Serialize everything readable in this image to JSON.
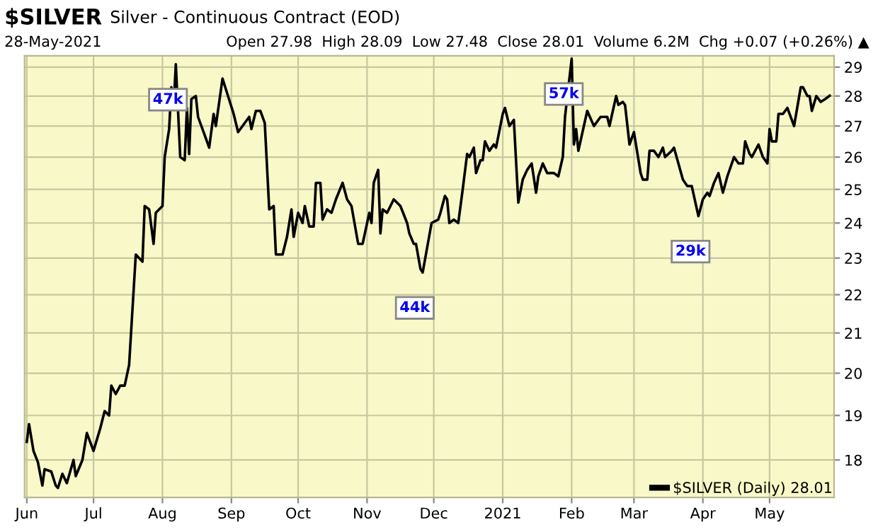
{
  "chart_data": {
    "type": "line",
    "title": "$SILVER",
    "subtitle": "Silver - Continuous Contract (EOD)",
    "annotations": [
      "28-May-2021",
      "Open 27.98  High 28.09  Low 27.48  Close 28.01  Volume 6.2M  Chg +0.07 (+0.26%) ▲",
      {
        "text": "47k",
        "x": "2020-08-07",
        "y": 29.1
      },
      {
        "text": "44k",
        "x": "2020-11-26",
        "y": 22.6
      },
      {
        "text": "57k",
        "x": "2021-02-01",
        "y": 29.3
      },
      {
        "text": "29k",
        "x": "2021-03-30",
        "y": 24.2
      }
    ],
    "x": [
      "2020-06-01",
      "2020-06-02",
      "2020-06-04",
      "2020-06-06",
      "2020-06-08",
      "2020-06-09",
      "2020-06-12",
      "2020-06-14",
      "2020-06-15",
      "2020-06-17",
      "2020-06-19",
      "2020-06-22",
      "2020-06-23",
      "2020-06-26",
      "2020-06-28",
      "2020-07-01",
      "2020-07-04",
      "2020-07-06",
      "2020-07-08",
      "2020-07-09",
      "2020-07-11",
      "2020-07-13",
      "2020-07-15",
      "2020-07-17",
      "2020-07-20",
      "2020-07-23",
      "2020-07-24",
      "2020-07-26",
      "2020-07-28",
      "2020-07-29",
      "2020-08-01",
      "2020-08-02",
      "2020-08-04",
      "2020-08-05",
      "2020-08-06",
      "2020-08-07",
      "2020-08-09",
      "2020-08-11",
      "2020-08-12",
      "2020-08-13",
      "2020-08-14",
      "2020-08-16",
      "2020-08-17",
      "2020-08-20",
      "2020-08-22",
      "2020-08-24",
      "2020-08-25",
      "2020-08-28",
      "2020-09-02",
      "2020-09-04",
      "2020-09-09",
      "2020-09-10",
      "2020-09-12",
      "2020-09-14",
      "2020-09-16",
      "2020-09-18",
      "2020-09-20",
      "2020-09-21",
      "2020-09-24",
      "2020-09-26",
      "2020-09-28",
      "2020-09-29",
      "2020-10-01",
      "2020-10-03",
      "2020-10-04",
      "2020-10-06",
      "2020-10-08",
      "2020-10-09",
      "2020-10-11",
      "2020-10-12",
      "2020-10-14",
      "2020-10-16",
      "2020-10-18",
      "2020-10-21",
      "2020-10-23",
      "2020-10-25",
      "2020-10-28",
      "2020-10-30",
      "2020-11-02",
      "2020-11-03",
      "2020-11-04",
      "2020-11-06",
      "2020-11-07",
      "2020-11-08",
      "2020-11-10",
      "2020-11-13",
      "2020-11-16",
      "2020-11-19",
      "2020-11-20",
      "2020-11-22",
      "2020-11-23",
      "2020-11-25",
      "2020-11-26",
      "2020-11-30",
      "2020-12-03",
      "2020-12-04",
      "2020-12-06",
      "2020-12-07",
      "2020-12-08",
      "2020-12-10",
      "2020-12-12",
      "2020-12-14",
      "2020-12-16",
      "2020-12-17",
      "2020-12-19",
      "2020-12-20",
      "2020-12-22",
      "2020-12-23",
      "2020-12-24",
      "2020-12-26",
      "2020-12-28",
      "2020-12-29",
      "2021-01-01",
      "2021-01-02",
      "2021-01-04",
      "2021-01-06",
      "2021-01-08",
      "2021-01-10",
      "2021-01-12",
      "2021-01-14",
      "2021-01-16",
      "2021-01-17",
      "2021-01-19",
      "2021-01-21",
      "2021-01-24",
      "2021-01-26",
      "2021-01-28",
      "2021-01-29",
      "2021-02-01",
      "2021-02-02",
      "2021-02-03",
      "2021-02-04",
      "2021-02-08",
      "2021-02-11",
      "2021-02-14",
      "2021-02-17",
      "2021-02-18",
      "2021-02-21",
      "2021-02-22",
      "2021-02-24",
      "2021-02-25",
      "2021-02-27",
      "2021-03-01",
      "2021-03-04",
      "2021-03-05",
      "2021-03-07",
      "2021-03-08",
      "2021-03-10",
      "2021-03-12",
      "2021-03-14",
      "2021-03-15",
      "2021-03-18",
      "2021-03-19",
      "2021-03-23",
      "2021-03-25",
      "2021-03-27",
      "2021-03-30",
      "2021-04-01",
      "2021-04-03",
      "2021-04-04",
      "2021-04-06",
      "2021-04-08",
      "2021-04-10",
      "2021-04-12",
      "2021-04-15",
      "2021-04-17",
      "2021-04-19",
      "2021-04-20",
      "2021-04-22",
      "2021-04-23",
      "2021-04-26",
      "2021-04-28",
      "2021-04-30",
      "2021-05-01",
      "2021-05-02",
      "2021-05-04",
      "2021-05-05",
      "2021-05-07",
      "2021-05-09",
      "2021-05-12",
      "2021-05-15",
      "2021-05-16",
      "2021-05-18",
      "2021-05-19",
      "2021-05-20",
      "2021-05-22",
      "2021-05-24",
      "2021-05-26",
      "2021-05-28"
    ],
    "series": [
      {
        "name": "$SILVER (Daily) 28.01",
        "color": "#000000",
        "values": [
          18.4,
          18.8,
          18.2,
          17.95,
          17.45,
          17.8,
          17.75,
          17.45,
          17.4,
          17.7,
          17.5,
          18.0,
          17.65,
          18.0,
          18.6,
          18.2,
          18.7,
          19.1,
          19.0,
          19.7,
          19.5,
          19.7,
          19.7,
          20.2,
          23.1,
          22.9,
          24.5,
          24.4,
          23.4,
          24.3,
          24.5,
          26.0,
          26.9,
          28.3,
          27.6,
          29.1,
          26.0,
          25.9,
          27.6,
          26.1,
          27.9,
          28.0,
          27.3,
          26.7,
          26.3,
          27.4,
          27.0,
          28.6,
          27.4,
          26.8,
          27.3,
          26.9,
          27.5,
          27.5,
          27.1,
          24.4,
          24.5,
          23.1,
          23.1,
          23.6,
          24.4,
          23.6,
          24.3,
          24.0,
          24.5,
          23.9,
          23.9,
          25.2,
          25.2,
          24.1,
          24.4,
          24.3,
          24.7,
          25.2,
          24.7,
          24.5,
          23.4,
          23.4,
          24.3,
          24.0,
          25.2,
          25.6,
          23.7,
          24.4,
          24.3,
          24.7,
          24.5,
          24.0,
          23.7,
          23.4,
          23.4,
          22.7,
          22.6,
          24.0,
          24.1,
          24.3,
          24.8,
          24.7,
          24.0,
          24.1,
          24.0,
          25.0,
          26.1,
          26.0,
          26.3,
          25.5,
          25.9,
          25.9,
          26.5,
          26.2,
          26.4,
          26.3,
          27.4,
          27.6,
          27.0,
          27.2,
          24.6,
          25.3,
          25.6,
          25.8,
          24.9,
          25.4,
          25.8,
          25.5,
          25.5,
          25.4,
          26.0,
          27.3,
          29.3,
          26.4,
          26.9,
          26.2,
          27.5,
          27.0,
          27.3,
          27.3,
          27.0,
          28.0,
          27.7,
          27.8,
          27.7,
          26.4,
          26.8,
          25.5,
          25.3,
          25.3,
          26.2,
          26.2,
          26.0,
          26.3,
          26.0,
          26.2,
          26.3,
          25.3,
          25.1,
          25.1,
          24.2,
          24.7,
          24.9,
          24.8,
          25.2,
          25.5,
          24.9,
          25.4,
          26.0,
          25.8,
          25.8,
          26.5,
          26.1,
          26.0,
          26.4,
          26.0,
          25.8,
          26.9,
          26.5,
          26.5,
          27.4,
          27.4,
          27.6,
          27.0,
          28.3,
          28.3,
          28.0,
          28.0,
          27.5,
          28.0,
          27.8,
          27.9,
          28.01
        ]
      }
    ],
    "log": "y",
    "ylim": [
      17.2,
      29.4
    ],
    "yticks": [
      18,
      19,
      20,
      21,
      22,
      23,
      24,
      25,
      26,
      27,
      28,
      29
    ],
    "xlim": [
      "2020-05-31",
      "2021-05-30"
    ],
    "xticks": [
      {
        "value": "2020-06-01",
        "label": "Jun"
      },
      {
        "value": "2020-07-01",
        "label": "Jul"
      },
      {
        "value": "2020-08-01",
        "label": "Aug"
      },
      {
        "value": "2020-09-01",
        "label": "Sep"
      },
      {
        "value": "2020-10-01",
        "label": "Oct"
      },
      {
        "value": "2020-11-01",
        "label": "Nov"
      },
      {
        "value": "2020-12-01",
        "label": "Dec"
      },
      {
        "value": "2021-01-01",
        "label": "2021"
      },
      {
        "value": "2021-02-01",
        "label": "Feb"
      },
      {
        "value": "2021-03-01",
        "label": "Mar"
      },
      {
        "value": "2021-04-01",
        "label": "Apr"
      },
      {
        "value": "2021-05-01",
        "label": "May"
      }
    ],
    "grid": true,
    "legend": "bottom right",
    "marker": "none",
    "line_style": "solid"
  }
}
